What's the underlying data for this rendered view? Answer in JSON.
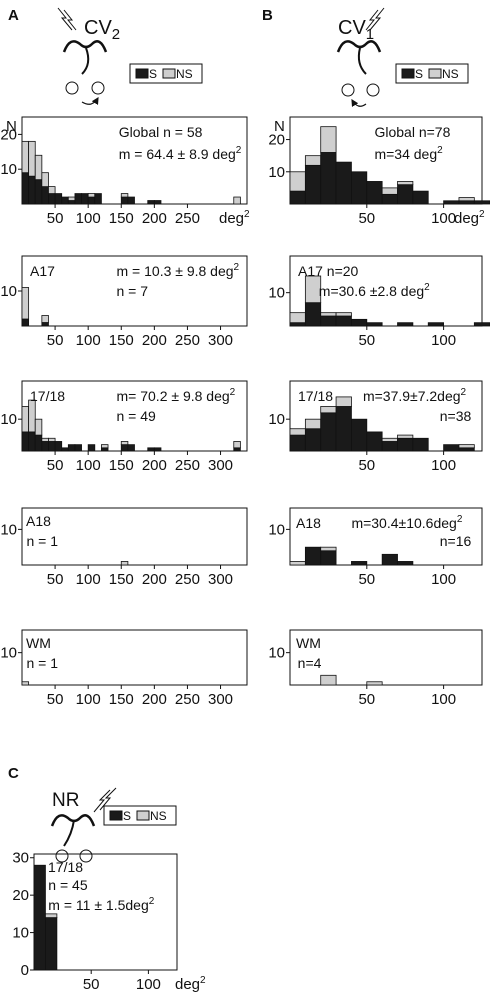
{
  "panel_letters": {
    "a": "A",
    "b": "B",
    "c": "C"
  },
  "cond_labels": {
    "a_main": "CV",
    "a_sub": "2",
    "b_main": "CV",
    "b_sub": "1",
    "c_main": "NR"
  },
  "legend": {
    "s": "S",
    "ns": "NS"
  },
  "colors": {
    "s": "#1a1a1a",
    "ns": "#cfcfcf"
  },
  "unit": {
    "deg": "deg",
    "exp": "2"
  },
  "chart_data": [
    {
      "id": "a-global",
      "type": "bar",
      "stacked": true,
      "series_names": [
        "S",
        "NS"
      ],
      "ylabel": "N",
      "yticks": [
        10,
        20
      ],
      "ylim": [
        0,
        25
      ],
      "xlim": [
        0,
        340
      ],
      "bin_width": 10,
      "xticks": [
        50,
        100,
        150,
        200,
        250
      ],
      "x_unit_label": true,
      "lines": [
        {
          "text": "Global n = 58"
        },
        {
          "text": "m = 64.4 ± 8.9 deg",
          "sup": "2"
        }
      ],
      "bins": [
        [
          0,
          9,
          9
        ],
        [
          10,
          8,
          10
        ],
        [
          20,
          7,
          7
        ],
        [
          30,
          5,
          4
        ],
        [
          40,
          3,
          2
        ],
        [
          50,
          3,
          0
        ],
        [
          60,
          2,
          0
        ],
        [
          70,
          1,
          1
        ],
        [
          80,
          3,
          0
        ],
        [
          90,
          3,
          0
        ],
        [
          100,
          2,
          1
        ],
        [
          110,
          3,
          0
        ],
        [
          150,
          2,
          1
        ],
        [
          160,
          2,
          0
        ],
        [
          190,
          1,
          0
        ],
        [
          200,
          1,
          0
        ],
        [
          320,
          0,
          2
        ]
      ]
    },
    {
      "id": "b-global",
      "type": "bar",
      "stacked": true,
      "series_names": [
        "S",
        "NS"
      ],
      "ylabel": "N",
      "yticks": [
        10,
        20
      ],
      "ylim": [
        0,
        27
      ],
      "xlim": [
        0,
        125
      ],
      "bin_width": 10,
      "xticks": [
        50,
        100
      ],
      "x_unit_label": true,
      "lines": [
        {
          "text": "Global n=78"
        },
        {
          "text": "m=34 deg",
          "sup": "2"
        }
      ],
      "bins": [
        [
          0,
          4,
          6
        ],
        [
          10,
          12,
          3
        ],
        [
          20,
          16,
          8
        ],
        [
          30,
          13,
          0
        ],
        [
          40,
          10,
          0
        ],
        [
          50,
          7,
          0
        ],
        [
          60,
          3,
          2
        ],
        [
          70,
          6,
          1
        ],
        [
          80,
          4,
          0
        ],
        [
          100,
          1,
          0
        ],
        [
          110,
          1,
          1
        ],
        [
          120,
          1,
          0
        ]
      ]
    },
    {
      "id": "a-a17",
      "type": "bar",
      "stacked": true,
      "series_names": [
        "S",
        "NS"
      ],
      "label": "A17",
      "yticks": [
        10
      ],
      "ylim": [
        0,
        20
      ],
      "xlim": [
        0,
        340
      ],
      "bin_width": 10,
      "xticks": [
        50,
        100,
        150,
        200,
        250,
        300
      ],
      "lines": [
        {
          "text": "m = 10.3 ± 9.8 deg",
          "sup": "2"
        },
        {
          "text": "n = 7"
        }
      ],
      "bins": [
        [
          0,
          2,
          9
        ],
        [
          30,
          1,
          2
        ]
      ]
    },
    {
      "id": "b-a17",
      "type": "bar",
      "stacked": true,
      "series_names": [
        "S",
        "NS"
      ],
      "label": "A17 n=20",
      "yticks": [
        10
      ],
      "ylim": [
        0,
        21
      ],
      "xlim": [
        0,
        125
      ],
      "bin_width": 10,
      "xticks": [
        50,
        100
      ],
      "lines": [
        {
          "text": "m=30.6 ±2.8 deg",
          "sup": "2"
        }
      ],
      "bins": [
        [
          0,
          1,
          3
        ],
        [
          10,
          7,
          8
        ],
        [
          20,
          3,
          1
        ],
        [
          30,
          3,
          1
        ],
        [
          40,
          2,
          0
        ],
        [
          50,
          1,
          0
        ],
        [
          70,
          1,
          0
        ],
        [
          90,
          1,
          0
        ],
        [
          120,
          1,
          0
        ]
      ]
    },
    {
      "id": "a-1718",
      "type": "bar",
      "stacked": true,
      "series_names": [
        "S",
        "NS"
      ],
      "label": "17/18",
      "yticks": [
        10
      ],
      "ylim": [
        0,
        22
      ],
      "xlim": [
        0,
        340
      ],
      "bin_width": 10,
      "xticks": [
        50,
        100,
        150,
        200,
        250,
        300
      ],
      "lines": [
        {
          "text": "m= 70.2 ± 9.8 deg",
          "sup": "2"
        },
        {
          "text": "n = 49"
        }
      ],
      "bins": [
        [
          0,
          6,
          8
        ],
        [
          10,
          6,
          10
        ],
        [
          20,
          5,
          5
        ],
        [
          30,
          3,
          1
        ],
        [
          40,
          3,
          1
        ],
        [
          50,
          3,
          0
        ],
        [
          60,
          1,
          0
        ],
        [
          70,
          2,
          0
        ],
        [
          80,
          2,
          0
        ],
        [
          100,
          2,
          0
        ],
        [
          120,
          1,
          1
        ],
        [
          150,
          2,
          1
        ],
        [
          160,
          2,
          0
        ],
        [
          190,
          1,
          0
        ],
        [
          200,
          1,
          0
        ],
        [
          320,
          1,
          2
        ]
      ]
    },
    {
      "id": "b-1718",
      "type": "bar",
      "stacked": true,
      "series_names": [
        "S",
        "NS"
      ],
      "label": "17/18",
      "yticks": [
        10
      ],
      "ylim": [
        0,
        22
      ],
      "xlim": [
        0,
        125
      ],
      "bin_width": 10,
      "xticks": [
        50,
        100
      ],
      "lines": [
        {
          "text": "m=37.9±7.2deg",
          "sup": "2"
        },
        {
          "text": "n=38"
        }
      ],
      "bins": [
        [
          0,
          5,
          2
        ],
        [
          10,
          7,
          3
        ],
        [
          20,
          12,
          2
        ],
        [
          30,
          14,
          3
        ],
        [
          40,
          10,
          0
        ],
        [
          50,
          6,
          0
        ],
        [
          60,
          3,
          1
        ],
        [
          70,
          4,
          1
        ],
        [
          80,
          4,
          0
        ],
        [
          100,
          2,
          0
        ],
        [
          110,
          1,
          1
        ]
      ]
    },
    {
      "id": "a-a18",
      "type": "bar",
      "stacked": true,
      "series_names": [
        "S",
        "NS"
      ],
      "label": "A18",
      "yticks": [
        10
      ],
      "ylim": [
        0,
        16
      ],
      "xlim": [
        0,
        340
      ],
      "bin_width": 10,
      "xticks": [
        50,
        100,
        150,
        200,
        250,
        300
      ],
      "lines": [
        {
          "text": "n = 1"
        }
      ],
      "bins": [
        [
          150,
          0,
          1
        ]
      ]
    },
    {
      "id": "b-a18",
      "type": "bar",
      "stacked": true,
      "series_names": [
        "S",
        "NS"
      ],
      "label": "A18",
      "yticks": [
        10
      ],
      "ylim": [
        0,
        16
      ],
      "xlim": [
        0,
        125
      ],
      "bin_width": 10,
      "xticks": [
        50,
        100
      ],
      "lines": [
        {
          "text": "m=30.4±10.6deg",
          "sup": "2"
        },
        {
          "text": "n=16"
        }
      ],
      "bins": [
        [
          0,
          0,
          1
        ],
        [
          10,
          5,
          0
        ],
        [
          20,
          4,
          1
        ],
        [
          40,
          1,
          0
        ],
        [
          60,
          3,
          0
        ],
        [
          70,
          1,
          0
        ]
      ]
    },
    {
      "id": "a-wm",
      "type": "bar",
      "stacked": true,
      "series_names": [
        "S",
        "NS"
      ],
      "label": "WM",
      "yticks": [
        10
      ],
      "ylim": [
        0,
        17
      ],
      "xlim": [
        0,
        340
      ],
      "bin_width": 10,
      "xticks": [
        50,
        100,
        150,
        200,
        250,
        300
      ],
      "lines": [
        {
          "text": "n = 1"
        }
      ],
      "bins": [
        [
          0,
          0,
          1
        ]
      ]
    },
    {
      "id": "b-wm",
      "type": "bar",
      "stacked": true,
      "series_names": [
        "S",
        "NS"
      ],
      "label": "WM",
      "yticks": [
        10
      ],
      "ylim": [
        0,
        17
      ],
      "xlim": [
        0,
        125
      ],
      "bin_width": 10,
      "xticks": [
        50,
        100
      ],
      "lines": [
        {
          "text": "n=4"
        }
      ],
      "bins": [
        [
          20,
          0,
          3
        ],
        [
          50,
          0,
          1
        ]
      ]
    },
    {
      "id": "c-1718",
      "type": "bar",
      "stacked": true,
      "series_names": [
        "S",
        "NS"
      ],
      "label": "17/18",
      "yticks": [
        0,
        10,
        20,
        30
      ],
      "ylim": [
        0,
        31
      ],
      "xlim": [
        0,
        125
      ],
      "bin_width": 10,
      "xticks": [
        50,
        100
      ],
      "x_unit_label": true,
      "lines": [
        {
          "text": "n = 45"
        },
        {
          "text": "m = 11 ± 1.5deg",
          "sup": "2"
        }
      ],
      "bins": [
        [
          0,
          28,
          0
        ],
        [
          10,
          14,
          1
        ]
      ]
    }
  ]
}
